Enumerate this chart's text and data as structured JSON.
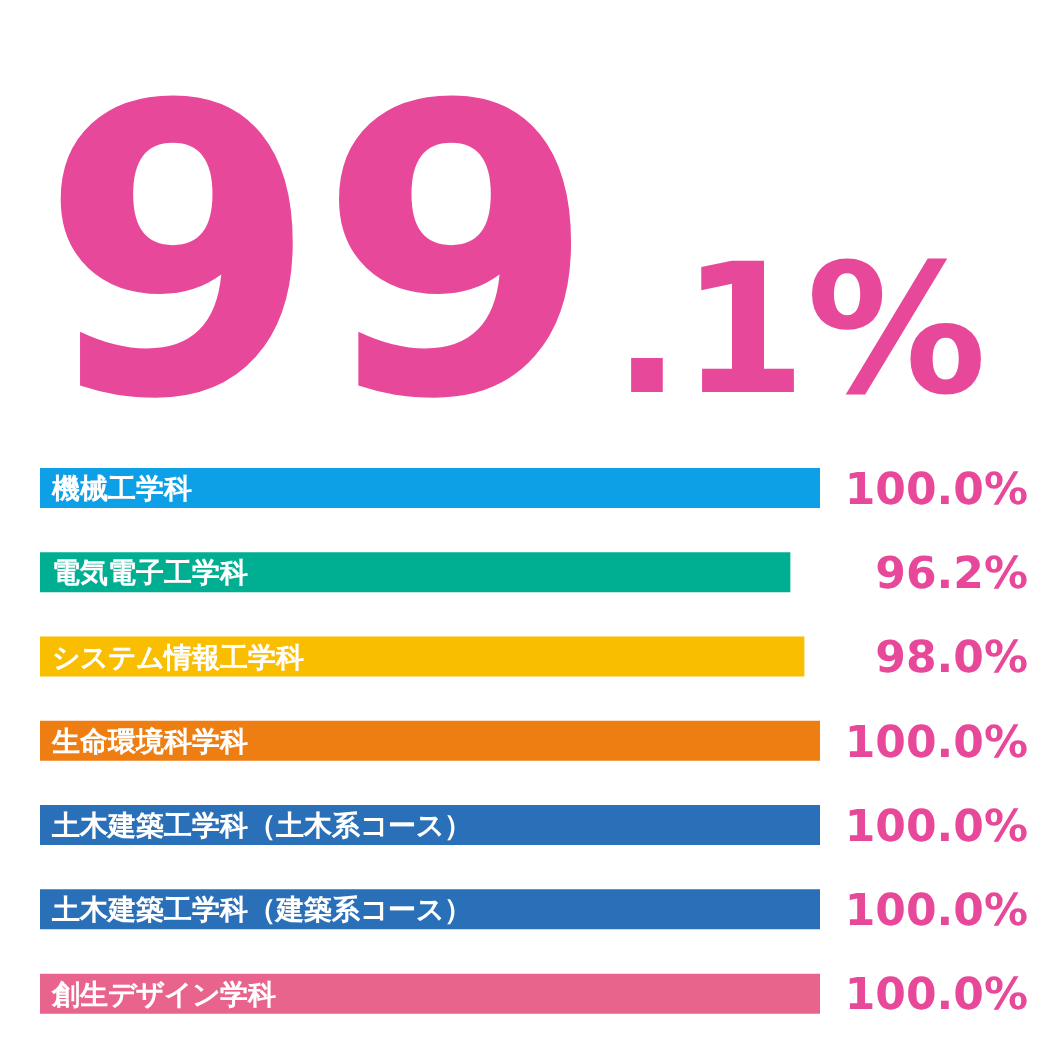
{
  "chart_data": {
    "type": "bar",
    "orientation": "horizontal",
    "title": "99.1%",
    "categories": [
      "機械工学科",
      "電気電子工学科",
      "システム情報工学科",
      "生命環境科学科",
      "土木建築工学科（土木系コース）",
      "土木建築工学科（建築系コース）",
      "創生デザイン学科"
    ],
    "values": [
      100.0,
      96.2,
      98.0,
      100.0,
      100.0,
      100.0,
      100.0
    ],
    "colors": [
      "#0ea0e6",
      "#00ae91",
      "#f9be00",
      "#ee7d12",
      "#2a70b8",
      "#2a70b8",
      "#e8648c"
    ],
    "value_labels": [
      "100.0%",
      "96.2%",
      "98.0%",
      "100.0%",
      "100.0%",
      "100.0%",
      "100.0%"
    ],
    "relative": false
  }
}
